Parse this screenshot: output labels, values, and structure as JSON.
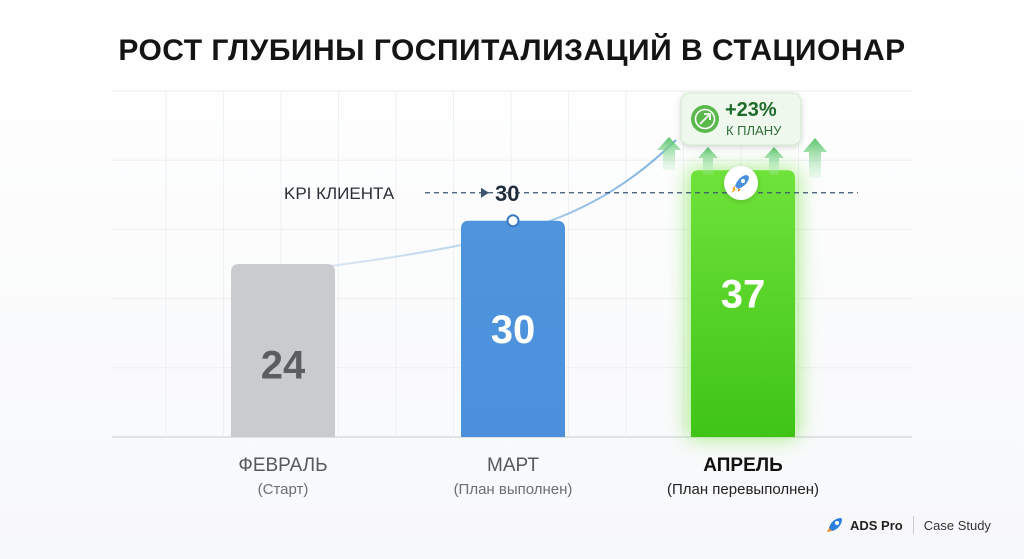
{
  "chart_data": {
    "type": "bar",
    "title": "РОСТ ГЛУБИНЫ ГОСПИТАЛИЗАЦИЙ В СТАЦИОНАР",
    "categories": [
      "ФЕВРАЛЬ",
      "МАРТ",
      "АПРЕЛЬ"
    ],
    "subcategories": [
      "(Старт)",
      "(План выполнен)",
      "(План перевыполнен)"
    ],
    "values": [
      24,
      30,
      37
    ],
    "bar_colors": [
      "#c9cbcf",
      "#4a92db",
      "#55d41f"
    ],
    "label_colors": [
      "#5b5d61",
      "#ffffff",
      "#ffffff"
    ],
    "kpi": {
      "label": "KPI КЛИЕНТА",
      "value": 30
    },
    "badge": {
      "value": "+23%",
      "caption": "К ПЛАНУ"
    },
    "grid": true,
    "ylim": [
      0,
      48
    ]
  },
  "footer": {
    "brand": "ADS Pro",
    "tag": "Case Study"
  }
}
